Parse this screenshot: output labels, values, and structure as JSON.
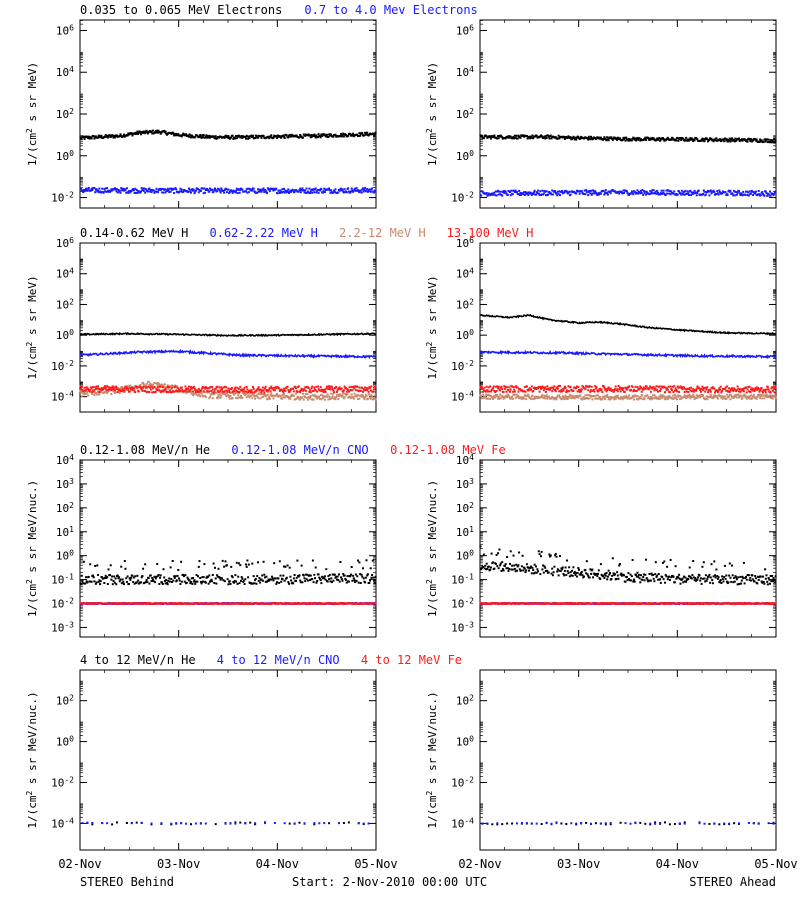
{
  "colors": {
    "black": "#000000",
    "blue": "#1a1aff",
    "tan": "#c88a6e",
    "red": "#ff1a1a"
  },
  "x_axis": {
    "tick_labels": [
      "02-Nov",
      "03-Nov",
      "04-Nov",
      "05-Nov"
    ],
    "range_days": [
      0,
      3
    ]
  },
  "footer": {
    "left": "STEREO Behind",
    "center": "Start:  2-Nov-2010 00:00 UTC",
    "right": "STEREO Ahead"
  },
  "rows": [
    {
      "id": "electrons",
      "legend": [
        {
          "text": "0.035 to 0.065 MeV Electrons",
          "color": "black"
        },
        {
          "text": "0.7 to 4.0 Mev Electrons",
          "color": "blue"
        }
      ],
      "ylabel_html": "1/(cm<tspan baseline-shift=\"super\" font-size=\"8\">2</tspan> s sr MeV)",
      "ylim_log10": [
        -2.5,
        6.5
      ],
      "yticks_exp": [
        -2,
        0,
        2,
        4,
        6
      ]
    },
    {
      "id": "protons",
      "legend": [
        {
          "text": "0.14-0.62 MeV H",
          "color": "black"
        },
        {
          "text": "0.62-2.22 MeV H",
          "color": "blue"
        },
        {
          "text": "2.2-12 MeV H",
          "color": "tan"
        },
        {
          "text": "13-100 MeV H",
          "color": "red"
        }
      ],
      "ylabel_html": "1/(cm<tspan baseline-shift=\"super\" font-size=\"8\">2</tspan> s sr MeV)",
      "ylim_log10": [
        -5,
        6
      ],
      "yticks_exp": [
        -4,
        -2,
        0,
        2,
        4,
        6
      ]
    },
    {
      "id": "heavy-low",
      "legend": [
        {
          "text": "0.12-1.08 MeV/n He",
          "color": "black"
        },
        {
          "text": "0.12-1.08 MeV/n CNO",
          "color": "blue"
        },
        {
          "text": "0.12-1.08 MeV Fe",
          "color": "red"
        }
      ],
      "ylabel_html": "1/(cm<tspan baseline-shift=\"super\" font-size=\"8\">2</tspan> s sr MeV/nuc.)",
      "ylim_log10": [
        -3.4,
        4
      ],
      "yticks_exp": [
        -3,
        -2,
        -1,
        0,
        1,
        2,
        3,
        4
      ]
    },
    {
      "id": "heavy-high",
      "legend": [
        {
          "text": "4 to 12 MeV/n He",
          "color": "black"
        },
        {
          "text": "4 to 12 MeV/n CNO",
          "color": "blue"
        },
        {
          "text": "4 to 12 MeV Fe",
          "color": "red"
        }
      ],
      "ylabel_html": "1/(cm<tspan baseline-shift=\"super\" font-size=\"8\">2</tspan> s sr MeV/nuc.)",
      "ylim_log10": [
        -5.3,
        3.5
      ],
      "yticks_exp": [
        -4,
        -2,
        0,
        2
      ]
    }
  ],
  "chart_data": [
    {
      "type": "scatter",
      "panel": "behind-electrons",
      "title": "",
      "xlabel": "",
      "ylabel": "1/(cm2 s sr MeV)",
      "yscale": "log",
      "ylim": [
        0.003,
        3000000
      ],
      "x_days": [
        0,
        3
      ],
      "series": [
        {
          "name": "0.035 to 0.065 MeV Electrons",
          "color": "black",
          "level_log10": [
            [
              0,
              0.85
            ],
            [
              0.4,
              0.95
            ],
            [
              0.6,
              1.1
            ],
            [
              0.8,
              1.15
            ],
            [
              1.0,
              1.0
            ],
            [
              1.3,
              0.9
            ],
            [
              1.6,
              0.88
            ],
            [
              2.0,
              0.92
            ],
            [
              2.4,
              0.95
            ],
            [
              2.7,
              1.0
            ],
            [
              3.0,
              1.05
            ]
          ],
          "spread": 0.08
        },
        {
          "name": "0.7 to 4.0 Mev Electrons",
          "color": "blue",
          "level_log10": [
            [
              0,
              -1.65
            ],
            [
              1.5,
              -1.68
            ],
            [
              3.0,
              -1.65
            ]
          ],
          "spread": 0.12
        }
      ]
    },
    {
      "type": "scatter",
      "panel": "ahead-electrons",
      "title": "",
      "xlabel": "",
      "ylabel": "1/(cm2 s sr MeV)",
      "yscale": "log",
      "ylim": [
        0.003,
        3000000
      ],
      "x_days": [
        0,
        3
      ],
      "series": [
        {
          "name": "0.035 to 0.065 MeV Electrons",
          "color": "black",
          "level_log10": [
            [
              0,
              0.9
            ],
            [
              0.7,
              0.9
            ],
            [
              1.0,
              0.85
            ],
            [
              1.5,
              0.8
            ],
            [
              2.2,
              0.78
            ],
            [
              2.7,
              0.75
            ],
            [
              3.0,
              0.72
            ]
          ],
          "spread": 0.08
        },
        {
          "name": "0.7 to 4.0 Mev Electrons",
          "color": "blue",
          "level_log10": [
            [
              0,
              -1.8
            ],
            [
              1.5,
              -1.75
            ],
            [
              3.0,
              -1.8
            ]
          ],
          "spread": 0.12
        }
      ]
    },
    {
      "type": "line",
      "panel": "behind-protons",
      "title": "",
      "xlabel": "",
      "ylabel": "1/(cm2 s sr MeV)",
      "yscale": "log",
      "ylim": [
        1e-05,
        1000000
      ],
      "x_days": [
        0,
        3
      ],
      "series": [
        {
          "name": "0.14-0.62 MeV H",
          "color": "black",
          "level_log10": [
            [
              0,
              0.05
            ],
            [
              0.5,
              0.1
            ],
            [
              1.0,
              0.05
            ],
            [
              1.5,
              -0.02
            ],
            [
              2.0,
              0.0
            ],
            [
              2.5,
              0.05
            ],
            [
              3.0,
              0.1
            ]
          ],
          "spread": 0.04
        },
        {
          "name": "0.62-2.22 MeV H",
          "color": "blue",
          "level_log10": [
            [
              0,
              -1.3
            ],
            [
              0.6,
              -1.1
            ],
            [
              1.0,
              -1.05
            ],
            [
              1.6,
              -1.3
            ],
            [
              2.2,
              -1.35
            ],
            [
              3.0,
              -1.4
            ]
          ],
          "spread": 0.06
        },
        {
          "name": "2.2-12 MeV H",
          "color": "tan",
          "level_log10": [
            [
              0,
              -3.8
            ],
            [
              0.4,
              -3.6
            ],
            [
              0.7,
              -3.2
            ],
            [
              0.9,
              -3.4
            ],
            [
              1.3,
              -3.9
            ],
            [
              2.0,
              -4.0
            ],
            [
              3.0,
              -4.0
            ]
          ],
          "spread": 0.2
        },
        {
          "name": "13-100 MeV H",
          "color": "red",
          "level_log10": [
            [
              0,
              -3.5
            ],
            [
              1.5,
              -3.55
            ],
            [
              3.0,
              -3.5
            ]
          ],
          "spread": 0.2
        }
      ]
    },
    {
      "type": "line",
      "panel": "ahead-protons",
      "title": "",
      "xlabel": "",
      "ylabel": "1/(cm2 s sr MeV)",
      "yscale": "log",
      "ylim": [
        1e-05,
        1000000
      ],
      "x_days": [
        0,
        3
      ],
      "series": [
        {
          "name": "0.14-0.62 MeV H",
          "color": "black",
          "level_log10": [
            [
              0,
              1.3
            ],
            [
              0.3,
              1.15
            ],
            [
              0.5,
              1.3
            ],
            [
              0.7,
              1.0
            ],
            [
              1.0,
              0.8
            ],
            [
              1.2,
              0.85
            ],
            [
              1.4,
              0.75
            ],
            [
              1.7,
              0.5
            ],
            [
              2.1,
              0.3
            ],
            [
              2.5,
              0.15
            ],
            [
              3.0,
              0.1
            ]
          ],
          "spread": 0.04
        },
        {
          "name": "0.62-2.22 MeV H",
          "color": "blue",
          "level_log10": [
            [
              0,
              -1.1
            ],
            [
              0.8,
              -1.15
            ],
            [
              1.5,
              -1.25
            ],
            [
              2.2,
              -1.35
            ],
            [
              3.0,
              -1.4
            ]
          ],
          "spread": 0.06
        },
        {
          "name": "2.2-12 MeV H",
          "color": "tan",
          "level_log10": [
            [
              0,
              -4.0
            ],
            [
              1.5,
              -4.05
            ],
            [
              3.0,
              -4.0
            ]
          ],
          "spread": 0.15
        },
        {
          "name": "13-100 MeV H",
          "color": "red",
          "level_log10": [
            [
              0,
              -3.5
            ],
            [
              1.5,
              -3.5
            ],
            [
              3.0,
              -3.55
            ]
          ],
          "spread": 0.2
        }
      ]
    },
    {
      "type": "scatter",
      "panel": "behind-heavy-low",
      "title": "",
      "xlabel": "",
      "ylabel": "1/(cm2 s sr MeV/nuc.)",
      "yscale": "log",
      "ylim": [
        0.0004,
        10000
      ],
      "x_days": [
        0,
        3
      ],
      "series": [
        {
          "name": "0.12-1.08 MeV/n He",
          "color": "black",
          "level_log10": [
            [
              0,
              -1.0
            ],
            [
              1.5,
              -1.0
            ],
            [
              3.0,
              -0.95
            ]
          ],
          "spread": 0.2
        },
        {
          "name": "0.12-1.08 MeV/n CNO",
          "color": "blue",
          "level_log10": [
            [
              0,
              -2.0
            ],
            [
              3.0,
              -2.0
            ]
          ],
          "spread": 0.02
        },
        {
          "name": "0.12-1.08 MeV Fe",
          "color": "red",
          "level_log10": [
            [
              0,
              -2.0
            ],
            [
              3.0,
              -2.0
            ]
          ],
          "spread": 0.02
        }
      ]
    },
    {
      "type": "scatter",
      "panel": "ahead-heavy-low",
      "title": "",
      "xlabel": "",
      "ylabel": "1/(cm2 s sr MeV/nuc.)",
      "yscale": "log",
      "ylim": [
        0.0004,
        10000
      ],
      "x_days": [
        0,
        3
      ],
      "series": [
        {
          "name": "0.12-1.08 MeV/n He",
          "color": "black",
          "level_log10": [
            [
              0,
              -0.4
            ],
            [
              0.5,
              -0.55
            ],
            [
              1.0,
              -0.7
            ],
            [
              1.5,
              -0.9
            ],
            [
              2.2,
              -1.0
            ],
            [
              3.0,
              -1.0
            ]
          ],
          "spread": 0.2
        },
        {
          "name": "0.12-1.08 MeV/n CNO",
          "color": "blue",
          "level_log10": [
            [
              0,
              -2.0
            ],
            [
              3.0,
              -2.0
            ]
          ],
          "spread": 0.02
        },
        {
          "name": "0.12-1.08 MeV Fe",
          "color": "red",
          "level_log10": [
            [
              0,
              -2.0
            ],
            [
              3.0,
              -2.0
            ]
          ],
          "spread": 0.02
        }
      ]
    },
    {
      "type": "scatter",
      "panel": "behind-heavy-high",
      "title": "",
      "xlabel": "",
      "ylabel": "1/(cm2 s sr MeV/nuc.)",
      "yscale": "log",
      "ylim": [
        5e-06,
        3000
      ],
      "x_days": [
        0,
        3
      ],
      "series": [
        {
          "name": "4 to 12 MeV/n He",
          "color": "black",
          "level_log10": [
            [
              0,
              -4.0
            ],
            [
              3.0,
              -4.0
            ]
          ],
          "spread": 0.05
        },
        {
          "name": "4 to 12 MeV/n CNO",
          "color": "blue",
          "level_log10": [
            [
              0,
              -4.0
            ],
            [
              3.0,
              -4.0
            ]
          ],
          "spread": 0.02
        },
        {
          "name": "4 to 12 MeV Fe",
          "color": "red",
          "level_log10": [],
          "spread": 0
        }
      ]
    },
    {
      "type": "scatter",
      "panel": "ahead-heavy-high",
      "title": "",
      "xlabel": "",
      "ylabel": "1/(cm2 s sr MeV/nuc.)",
      "yscale": "log",
      "ylim": [
        5e-06,
        3000
      ],
      "x_days": [
        0,
        3
      ],
      "series": [
        {
          "name": "4 to 12 MeV/n He",
          "color": "black",
          "level_log10": [
            [
              0,
              -4.0
            ],
            [
              3.0,
              -4.0
            ]
          ],
          "spread": 0.05
        },
        {
          "name": "4 to 12 MeV/n CNO",
          "color": "blue",
          "level_log10": [
            [
              0,
              -4.0
            ],
            [
              3.0,
              -4.0
            ]
          ],
          "spread": 0.02
        },
        {
          "name": "4 to 12 MeV Fe",
          "color": "red",
          "level_log10": [],
          "spread": 0
        }
      ]
    }
  ]
}
